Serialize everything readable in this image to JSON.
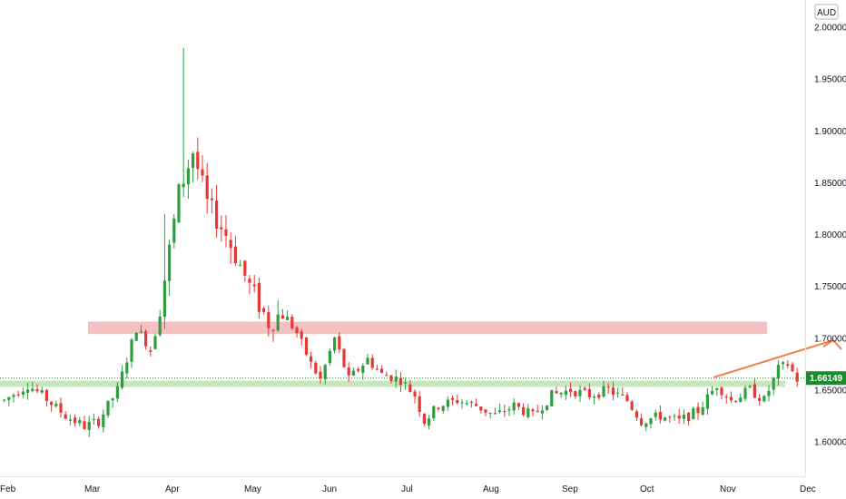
{
  "chart_data": {
    "type": "candlestick",
    "currency": "AUD",
    "last_price": "1.66149",
    "y_ticks": [
      "2.00000",
      "1.95000",
      "1.90000",
      "1.85000",
      "1.80000",
      "1.75000",
      "1.70000",
      "1.65000",
      "1.60000"
    ],
    "y_tick_values": [
      2.0,
      1.95,
      1.9,
      1.85,
      1.8,
      1.75,
      1.7,
      1.65,
      1.6
    ],
    "x_ticks": [
      "Feb",
      "Mar",
      "Apr",
      "May",
      "Jun",
      "Jul",
      "Aug",
      "Sep",
      "Oct",
      "Nov",
      "Dec"
    ],
    "ylim": [
      1.575,
      2.025
    ],
    "grid": false,
    "colors": {
      "up": "#26a69a",
      "up_candle": "#2e9e3f",
      "down": "#e53935",
      "price_label": "#1b8c2e",
      "resistance_zone": "#f4b6b6",
      "support_zone": "#bfe3b0",
      "arrow": "#f2804f"
    },
    "resistance_zone": {
      "low": 1.704,
      "high": 1.716
    },
    "support_zone": {
      "low": 1.653,
      "high": 1.659
    },
    "anchor_path": [
      [
        0,
        1.64
      ],
      [
        5,
        1.655
      ],
      [
        8,
        1.645
      ],
      [
        13,
        1.625
      ],
      [
        17,
        1.615
      ],
      [
        20,
        1.62
      ],
      [
        24,
        1.65
      ],
      [
        28,
        1.71
      ],
      [
        31,
        1.69
      ],
      [
        33,
        1.73
      ],
      [
        37,
        1.84
      ],
      [
        40,
        1.88
      ],
      [
        43,
        1.83
      ],
      [
        47,
        1.8
      ],
      [
        52,
        1.75
      ],
      [
        56,
        1.715
      ],
      [
        59,
        1.725
      ],
      [
        62,
        1.705
      ],
      [
        65,
        1.675
      ],
      [
        67,
        1.66
      ],
      [
        70,
        1.7
      ],
      [
        73,
        1.66
      ],
      [
        77,
        1.68
      ],
      [
        80,
        1.665
      ],
      [
        84,
        1.66
      ],
      [
        87,
        1.645
      ],
      [
        89,
        1.62
      ],
      [
        92,
        1.635
      ],
      [
        96,
        1.64
      ],
      [
        100,
        1.635
      ],
      [
        104,
        1.625
      ],
      [
        108,
        1.635
      ],
      [
        112,
        1.625
      ],
      [
        116,
        1.645
      ],
      [
        120,
        1.65
      ],
      [
        124,
        1.645
      ],
      [
        128,
        1.65
      ],
      [
        132,
        1.64
      ],
      [
        135,
        1.62
      ],
      [
        139,
        1.625
      ],
      [
        143,
        1.62
      ],
      [
        147,
        1.63
      ],
      [
        151,
        1.655
      ],
      [
        154,
        1.64
      ],
      [
        158,
        1.65
      ],
      [
        161,
        1.64
      ],
      [
        164,
        1.67
      ],
      [
        166,
        1.675
      ],
      [
        168,
        1.66
      ]
    ],
    "spikes": [
      {
        "index": 38,
        "high": 1.98,
        "low": 1.84
      },
      {
        "index": 34,
        "high": 1.82,
        "low": 1.72
      }
    ],
    "arrow_target": {
      "index": 175,
      "value": 1.705
    },
    "candle_count": 169
  }
}
